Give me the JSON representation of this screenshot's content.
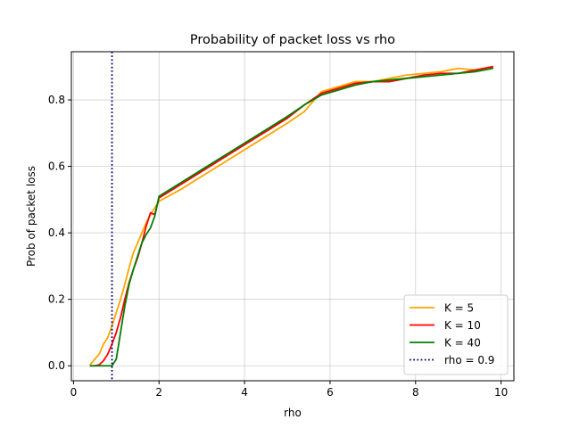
{
  "chart_data": {
    "type": "line",
    "title": "Probability of packet loss vs rho",
    "xlabel": "rho",
    "ylabel": "Prob of packet loss",
    "xlim": [
      -0.05,
      10.3
    ],
    "ylim": [
      -0.045,
      0.945
    ],
    "xticks": [
      0,
      2,
      4,
      6,
      8,
      10
    ],
    "xtick_labels": [
      "0",
      "2",
      "4",
      "6",
      "8",
      "10"
    ],
    "yticks": [
      0.0,
      0.2,
      0.4,
      0.6,
      0.8
    ],
    "ytick_labels": [
      "0.0",
      "0.2",
      "0.4",
      "0.6",
      "0.8"
    ],
    "grid": true,
    "legend_position": "bottom-right",
    "series": [
      {
        "name": "K = 5",
        "color": "#ffa500",
        "style": "solid",
        "x": [
          0.4,
          0.5,
          0.6,
          0.7,
          0.8,
          0.9,
          1.0,
          1.1,
          1.2,
          1.3,
          1.4,
          1.5,
          1.6,
          1.7,
          1.8,
          1.9,
          2.0,
          2.5,
          3.0,
          3.5,
          4.0,
          4.5,
          5.0,
          5.4,
          5.8,
          6.2,
          6.6,
          7.0,
          7.4,
          7.8,
          8.2,
          8.6,
          9.0,
          9.4,
          9.8
        ],
        "y": [
          0.005,
          0.02,
          0.035,
          0.065,
          0.085,
          0.12,
          0.16,
          0.2,
          0.245,
          0.295,
          0.34,
          0.37,
          0.4,
          0.43,
          0.455,
          0.475,
          0.495,
          0.53,
          0.57,
          0.61,
          0.65,
          0.69,
          0.73,
          0.765,
          0.825,
          0.84,
          0.855,
          0.855,
          0.865,
          0.875,
          0.88,
          0.885,
          0.895,
          0.89,
          0.9
        ]
      },
      {
        "name": "K = 10",
        "color": "#ff0000",
        "style": "solid",
        "x": [
          0.4,
          0.5,
          0.6,
          0.7,
          0.8,
          0.9,
          1.0,
          1.1,
          1.2,
          1.3,
          1.4,
          1.5,
          1.6,
          1.7,
          1.8,
          1.9,
          2.0,
          2.5,
          3.0,
          3.5,
          4.0,
          4.5,
          5.0,
          5.4,
          5.8,
          6.2,
          6.6,
          7.0,
          7.4,
          7.8,
          8.2,
          8.6,
          9.0,
          9.4,
          9.8
        ],
        "y": [
          0.0,
          0.0,
          0.003,
          0.015,
          0.035,
          0.065,
          0.1,
          0.145,
          0.2,
          0.25,
          0.29,
          0.325,
          0.37,
          0.42,
          0.46,
          0.455,
          0.505,
          0.545,
          0.585,
          0.625,
          0.665,
          0.705,
          0.745,
          0.785,
          0.82,
          0.835,
          0.85,
          0.855,
          0.855,
          0.865,
          0.875,
          0.88,
          0.88,
          0.89,
          0.9
        ]
      },
      {
        "name": "K = 40",
        "color": "#008000",
        "style": "solid",
        "x": [
          0.4,
          0.5,
          0.6,
          0.7,
          0.8,
          0.9,
          1.0,
          1.1,
          1.2,
          1.3,
          1.4,
          1.5,
          1.6,
          1.7,
          1.8,
          1.9,
          2.0,
          2.5,
          3.0,
          3.5,
          4.0,
          4.5,
          5.0,
          5.4,
          5.8,
          6.2,
          6.6,
          7.0,
          7.4,
          7.8,
          8.2,
          8.6,
          9.0,
          9.4,
          9.8
        ],
        "y": [
          0.0,
          0.0,
          0.0,
          0.0,
          0.0,
          0.0,
          0.02,
          0.1,
          0.18,
          0.245,
          0.29,
          0.33,
          0.37,
          0.395,
          0.415,
          0.45,
          0.51,
          0.55,
          0.59,
          0.63,
          0.67,
          0.71,
          0.75,
          0.785,
          0.815,
          0.83,
          0.845,
          0.855,
          0.86,
          0.865,
          0.87,
          0.875,
          0.88,
          0.885,
          0.895
        ]
      },
      {
        "name": "rho = 0.9",
        "color": "#000080",
        "style": "dotted",
        "vline_x": 0.9
      }
    ]
  }
}
